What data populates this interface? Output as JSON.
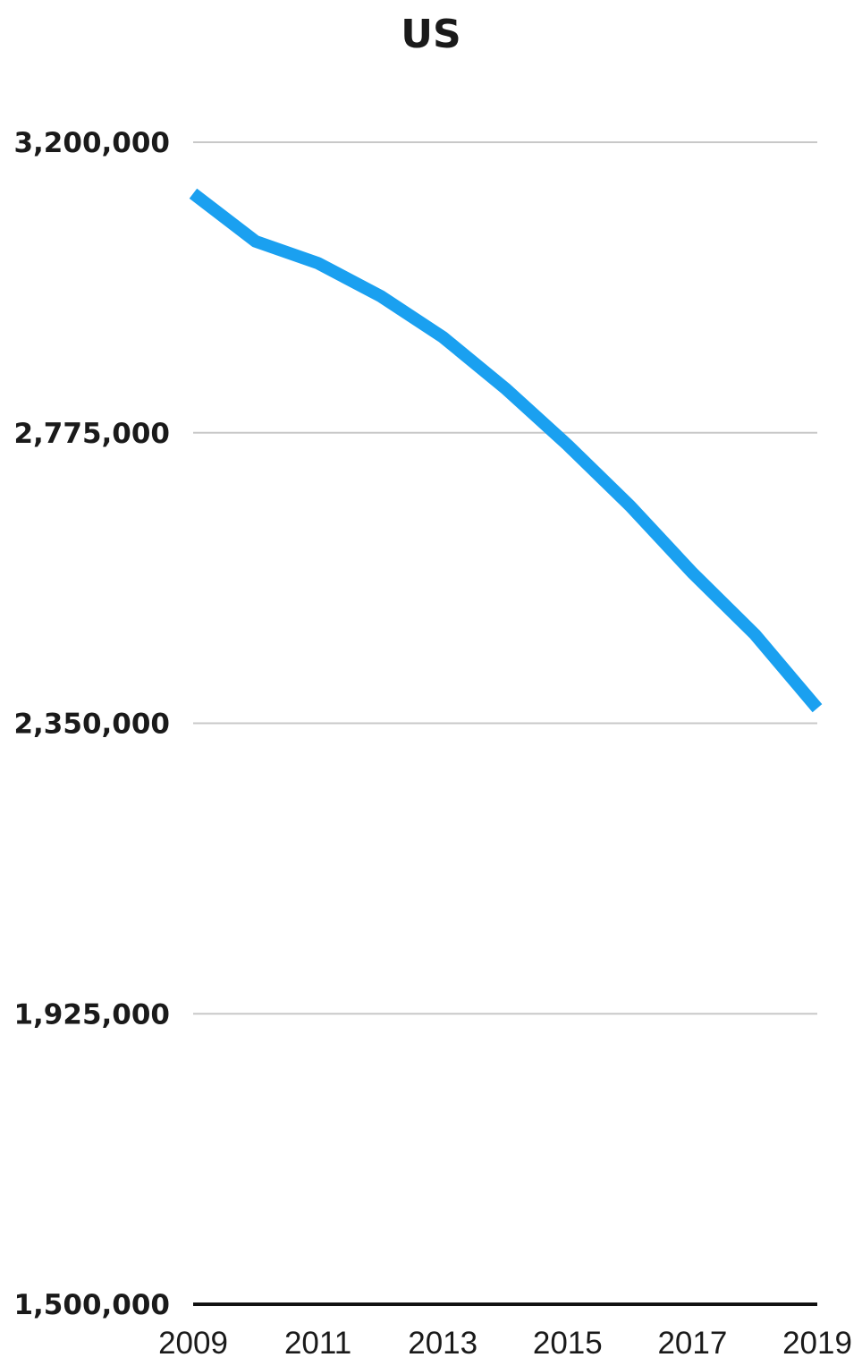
{
  "chart_data": {
    "type": "line",
    "title": "US",
    "xlabel": "",
    "ylabel": "",
    "x": [
      2009,
      2010,
      2011,
      2012,
      2013,
      2014,
      2015,
      2016,
      2017,
      2018,
      2019
    ],
    "x_tick_labels": [
      "2009",
      "2011",
      "2013",
      "2015",
      "2017",
      "2019"
    ],
    "y_tick_values": [
      1500000,
      1925000,
      2350000,
      2775000,
      3200000
    ],
    "y_tick_labels": [
      "1,500,000",
      "1,925,000",
      "2,350,000",
      "2,775,000",
      "3,200,000"
    ],
    "ylim": [
      1500000,
      3200000
    ],
    "grid": true,
    "series": [
      {
        "color": "#1aa0f0",
        "values": [
          3125000,
          3055000,
          3023000,
          2975000,
          2915000,
          2840000,
          2757000,
          2668000,
          2570000,
          2480000,
          2372000
        ]
      }
    ]
  }
}
